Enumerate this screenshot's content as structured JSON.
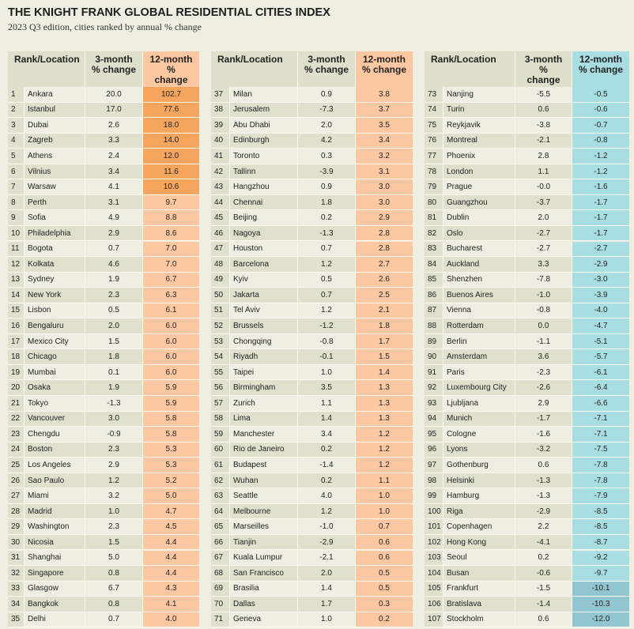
{
  "header": {
    "title": "THE KNIGHT FRANK GLOBAL RESIDENTIAL CITIES INDEX",
    "subtitle": "2023 Q3 edition, cities ranked by annual % change"
  },
  "tables": [
    {
      "columns": [
        "Rank/Location",
        "3-month % change",
        "12-month % change"
      ],
      "rows": [
        [
          "1",
          "Ankara",
          "20.0",
          "102.7"
        ],
        [
          "2",
          "Istanbul",
          "17.0",
          "77.6"
        ],
        [
          "3",
          "Dubai",
          "2.6",
          "18.0"
        ],
        [
          "4",
          "Zagreb",
          "3.3",
          "14.0"
        ],
        [
          "5",
          "Athens",
          "2.4",
          "12.0"
        ],
        [
          "6",
          "Vilnius",
          "3.4",
          "11.6"
        ],
        [
          "7",
          "Warsaw",
          "4.1",
          "10.6"
        ],
        [
          "8",
          "Perth",
          "3.1",
          "9.7"
        ],
        [
          "9",
          "Sofia",
          "4.9",
          "8.8"
        ],
        [
          "10",
          "Philadelphia",
          "2.9",
          "8.6"
        ],
        [
          "11",
          "Bogota",
          "0.7",
          "7.0"
        ],
        [
          "12",
          "Kolkata",
          "4.6",
          "7.0"
        ],
        [
          "13",
          "Sydney",
          "1.9",
          "6.7"
        ],
        [
          "14",
          "New York",
          "2.3",
          "6.3"
        ],
        [
          "15",
          "Lisbon",
          "0.5",
          "6.1"
        ],
        [
          "16",
          "Bengaluru",
          "2.0",
          "6.0"
        ],
        [
          "17",
          "Mexico City",
          "1.5",
          "6.0"
        ],
        [
          "18",
          "Chicago",
          "1.8",
          "6.0"
        ],
        [
          "19",
          "Mumbai",
          "0.1",
          "6.0"
        ],
        [
          "20",
          "Osaka",
          "1.9",
          "5.9"
        ],
        [
          "21",
          "Tokyo",
          "-1.3",
          "5.9"
        ],
        [
          "22",
          "Vancouver",
          "3.0",
          "5.8"
        ],
        [
          "23",
          "Chengdu",
          "-0.9",
          "5.8"
        ],
        [
          "24",
          "Boston",
          "2.3",
          "5.3"
        ],
        [
          "25",
          "Los Angeles",
          "2.9",
          "5.3"
        ],
        [
          "26",
          "Sao Paulo",
          "1.2",
          "5.2"
        ],
        [
          "27",
          "Miami",
          "3.2",
          "5.0"
        ],
        [
          "28",
          "Madrid",
          "1.0",
          "4.7"
        ],
        [
          "29",
          "Washington",
          "2.3",
          "4.5"
        ],
        [
          "30",
          "Nicosia",
          "1.5",
          "4.4"
        ],
        [
          "31",
          "Shanghai",
          "5.0",
          "4.4"
        ],
        [
          "32",
          "Singapore",
          "0.8",
          "4.4"
        ],
        [
          "33",
          "Glasgow",
          "6.7",
          "4.3"
        ],
        [
          "34",
          "Bangkok",
          "0.8",
          "4.1"
        ],
        [
          "35",
          "Delhi",
          "0.7",
          "4.0"
        ]
      ]
    },
    {
      "columns": [
        "Rank/Location",
        "3-month % change",
        "12-month % change"
      ],
      "rows": [
        [
          "37",
          "Milan",
          "0.9",
          "3.8"
        ],
        [
          "38",
          "Jerusalem",
          "-7.3",
          "3.7"
        ],
        [
          "39",
          "Abu Dhabi",
          "2.0",
          "3.5"
        ],
        [
          "40",
          "Edinburgh",
          "4.2",
          "3.4"
        ],
        [
          "41",
          "Toronto",
          "0.3",
          "3.2"
        ],
        [
          "42",
          "Tallinn",
          "-3.9",
          "3.1"
        ],
        [
          "43",
          "Hangzhou",
          "0.9",
          "3.0"
        ],
        [
          "44",
          "Chennai",
          "1.8",
          "3.0"
        ],
        [
          "45",
          "Beijing",
          "0.2",
          "2.9"
        ],
        [
          "46",
          "Nagoya",
          "-1.3",
          "2.8"
        ],
        [
          "47",
          "Houston",
          "0.7",
          "2.8"
        ],
        [
          "48",
          "Barcelona",
          "1.2",
          "2.7"
        ],
        [
          "49",
          "Kyiv",
          "0.5",
          "2.6"
        ],
        [
          "50",
          "Jakarta",
          "0.7",
          "2.5"
        ],
        [
          "51",
          "Tel Aviv",
          "1.2",
          "2.1"
        ],
        [
          "52",
          "Brussels",
          "-1.2",
          "1.8"
        ],
        [
          "53",
          "Chongqing",
          "-0.8",
          "1.7"
        ],
        [
          "54",
          "Riyadh",
          "-0.1",
          "1.5"
        ],
        [
          "55",
          "Taipei",
          "1.0",
          "1.4"
        ],
        [
          "56",
          "Birmingham",
          "3.5",
          "1.3"
        ],
        [
          "57",
          "Zurich",
          "1.1",
          "1.3"
        ],
        [
          "58",
          "Lima",
          "1.4",
          "1.3"
        ],
        [
          "59",
          "Manchester",
          "3.4",
          "1.2"
        ],
        [
          "60",
          "Rio de Janeiro",
          "0.2",
          "1.2"
        ],
        [
          "61",
          "Budapest",
          "-1.4",
          "1.2"
        ],
        [
          "62",
          "Wuhan",
          "0.2",
          "1.1"
        ],
        [
          "63",
          "Seattle",
          "4.0",
          "1.0"
        ],
        [
          "64",
          "Melbourne",
          "1.2",
          "1.0"
        ],
        [
          "65",
          "Marseilles",
          "-1.0",
          "0.7"
        ],
        [
          "66",
          "Tianjin",
          "-2.9",
          "0.6"
        ],
        [
          "67",
          "Kuala Lumpur",
          "-2.1",
          "0.6"
        ],
        [
          "68",
          "San Francisco",
          "2.0",
          "0.5"
        ],
        [
          "69",
          "Brasilia",
          "1.4",
          "0.5"
        ],
        [
          "70",
          "Dallas",
          "1.7",
          "0.3"
        ],
        [
          "71",
          "Geneva",
          "1.0",
          "0.2"
        ]
      ]
    },
    {
      "columns": [
        "Rank/Location",
        "3-month % change",
        "12-month % change"
      ],
      "rows": [
        [
          "73",
          "Nanjing",
          "-5.5",
          "-0.5"
        ],
        [
          "74",
          "Turin",
          "0.6",
          "-0.6"
        ],
        [
          "75",
          "Reykjavik",
          "-3.8",
          "-0.7"
        ],
        [
          "76",
          "Montreal",
          "-2.1",
          "-0.8"
        ],
        [
          "77",
          "Phoenix",
          "2.8",
          "-1.2"
        ],
        [
          "78",
          "London",
          "1.1",
          "-1.2"
        ],
        [
          "79",
          "Prague",
          "-0.0",
          "-1.6"
        ],
        [
          "80",
          "Guangzhou",
          "-3.7",
          "-1.7"
        ],
        [
          "81",
          "Dublin",
          "2.0",
          "-1.7"
        ],
        [
          "82",
          "Oslo",
          "-2.7",
          "-1.7"
        ],
        [
          "83",
          "Bucharest",
          "-2.7",
          "-2.7"
        ],
        [
          "84",
          "Auckland",
          "3.3",
          "-2.9"
        ],
        [
          "85",
          "Shenzhen",
          "-7.8",
          "-3.0"
        ],
        [
          "86",
          "Buenos Aires",
          "-1.0",
          "-3.9"
        ],
        [
          "87",
          "Vienna",
          "-0.8",
          "-4.0"
        ],
        [
          "88",
          "Rotterdam",
          "0.0",
          "-4.7"
        ],
        [
          "89",
          "Berlin",
          "-1.1",
          "-5.1"
        ],
        [
          "90",
          "Amsterdam",
          "3.6",
          "-5.7"
        ],
        [
          "91",
          "Paris",
          "-2.3",
          "-6.1"
        ],
        [
          "92",
          "Luxembourg City",
          "-2.6",
          "-6.4"
        ],
        [
          "93",
          "Ljubljana",
          "2.9",
          "-6.6"
        ],
        [
          "94",
          "Munich",
          "-1.7",
          "-7.1"
        ],
        [
          "95",
          "Cologne",
          "-1.6",
          "-7.1"
        ],
        [
          "96",
          "Lyons",
          "-3.2",
          "-7.5"
        ],
        [
          "97",
          "Gothenburg",
          "0.6",
          "-7.8"
        ],
        [
          "98",
          "Helsinki",
          "-1.3",
          "-7.8"
        ],
        [
          "99",
          "Hamburg",
          "-1.3",
          "-7.9"
        ],
        [
          "100",
          "Riga",
          "-2.9",
          "-8.5"
        ],
        [
          "101",
          "Copenhagen",
          "2.2",
          "-8.5"
        ],
        [
          "102",
          "Hong Kong",
          "-4.1",
          "-8.7"
        ],
        [
          "103",
          "Seoul",
          "0.2",
          "-9.2"
        ],
        [
          "104",
          "Busan",
          "-0.6",
          "-9.7"
        ],
        [
          "105",
          "Frankfurt",
          "-1.5",
          "-10.1"
        ],
        [
          "106",
          "Bratislava",
          "-1.4",
          "-10.3"
        ],
        [
          "107",
          "Stockholm",
          "0.6",
          "-12.0"
        ]
      ]
    }
  ]
}
